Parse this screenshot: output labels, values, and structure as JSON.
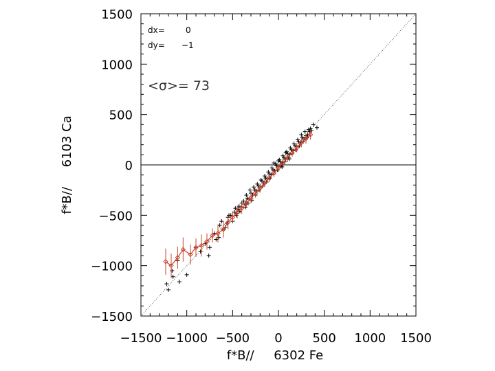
{
  "chart_data": {
    "type": "scatter",
    "title": "",
    "xlabel": "f*B//     6302 Fe",
    "ylabel": "f*B//     6103 Ca",
    "xlim": [
      -1500,
      1500
    ],
    "ylim": [
      -1500,
      1500
    ],
    "x_ticks": [
      "−1500",
      "−1000",
      "−500",
      "0",
      "500",
      "1000",
      "1500"
    ],
    "y_ticks": [
      "−1500",
      "−1000",
      "−500",
      "0",
      "500",
      "1000",
      "1500"
    ],
    "tick_values": [
      -1500,
      -1000,
      -500,
      0,
      500,
      1000,
      1500
    ],
    "grid": false,
    "annotations": {
      "dx_label": "dx=",
      "dx_value": "0",
      "dy_label": "dy=",
      "dy_value": "−1",
      "sigma_text": "<σ>= 73"
    },
    "colors": {
      "points": "#000000",
      "binned_mean": "#c8442c",
      "diagonal": "#555555"
    },
    "reference_lines": [
      {
        "type": "identity",
        "from": [
          -1500,
          -1500
        ],
        "to": [
          1500,
          1500
        ],
        "style": "dotted"
      },
      {
        "type": "horizontal",
        "y": 0,
        "style": "solid"
      }
    ],
    "scatter_points": [
      [
        -1220,
        -1180
      ],
      [
        -1150,
        -1110
      ],
      [
        -1160,
        -1050
      ],
      [
        -1080,
        -1160
      ],
      [
        -1000,
        -1090
      ],
      [
        -900,
        -820
      ],
      [
        -850,
        -860
      ],
      [
        -800,
        -780
      ],
      [
        -760,
        -900
      ],
      [
        -1100,
        -950
      ],
      [
        -700,
        -680
      ],
      [
        -650,
        -720
      ],
      [
        -640,
        -600
      ],
      [
        -600,
        -640
      ],
      [
        -580,
        -620
      ],
      [
        -550,
        -520
      ],
      [
        -520,
        -500
      ],
      [
        -500,
        -560
      ],
      [
        -470,
        -430
      ],
      [
        -450,
        -480
      ],
      [
        -430,
        -410
      ],
      [
        -400,
        -420
      ],
      [
        -380,
        -360
      ],
      [
        -360,
        -390
      ],
      [
        -340,
        -330
      ],
      [
        -320,
        -340
      ],
      [
        -300,
        -280
      ],
      [
        -280,
        -300
      ],
      [
        -260,
        -250
      ],
      [
        -240,
        -260
      ],
      [
        -220,
        -210
      ],
      [
        -200,
        -220
      ],
      [
        -180,
        -160
      ],
      [
        -160,
        -180
      ],
      [
        -140,
        -130
      ],
      [
        -120,
        -140
      ],
      [
        -100,
        -90
      ],
      [
        -80,
        -100
      ],
      [
        -60,
        -50
      ],
      [
        -40,
        -60
      ],
      [
        -20,
        -10
      ],
      [
        0,
        -20
      ],
      [
        20,
        30
      ],
      [
        40,
        20
      ],
      [
        60,
        70
      ],
      [
        80,
        60
      ],
      [
        100,
        110
      ],
      [
        120,
        100
      ],
      [
        140,
        150
      ],
      [
        160,
        140
      ],
      [
        180,
        190
      ],
      [
        200,
        180
      ],
      [
        220,
        230
      ],
      [
        240,
        220
      ],
      [
        260,
        270
      ],
      [
        280,
        260
      ],
      [
        300,
        290
      ],
      [
        320,
        300
      ],
      [
        340,
        330
      ],
      [
        360,
        340
      ],
      [
        -350,
        -300
      ],
      [
        -330,
        -380
      ],
      [
        -310,
        -250
      ],
      [
        -290,
        -350
      ],
      [
        -270,
        -220
      ],
      [
        -250,
        -300
      ],
      [
        -230,
        -190
      ],
      [
        -210,
        -250
      ],
      [
        -190,
        -150
      ],
      [
        -170,
        -210
      ],
      [
        -150,
        -110
      ],
      [
        -130,
        -170
      ],
      [
        -110,
        -70
      ],
      [
        -90,
        -130
      ],
      [
        -70,
        -30
      ],
      [
        -50,
        -90
      ],
      [
        -30,
        10
      ],
      [
        -10,
        -50
      ],
      [
        10,
        50
      ],
      [
        30,
        -10
      ],
      [
        50,
        90
      ],
      [
        70,
        30
      ],
      [
        90,
        130
      ],
      [
        110,
        70
      ],
      [
        130,
        170
      ],
      [
        150,
        110
      ],
      [
        170,
        210
      ],
      [
        190,
        150
      ],
      [
        210,
        250
      ],
      [
        230,
        190
      ],
      [
        250,
        300
      ],
      [
        270,
        230
      ],
      [
        290,
        330
      ],
      [
        310,
        270
      ],
      [
        330,
        350
      ],
      [
        380,
        400
      ],
      [
        420,
        370
      ],
      [
        350,
        360
      ],
      [
        -480,
        -470
      ],
      [
        -460,
        -500
      ],
      [
        -440,
        -440
      ],
      [
        -420,
        -460
      ],
      [
        -400,
        -380
      ],
      [
        -560,
        -580
      ],
      [
        -540,
        -500
      ],
      [
        -1200,
        -1240
      ],
      [
        -750,
        -820
      ],
      [
        -680,
        -740
      ],
      [
        -620,
        -560
      ],
      [
        -360,
        -420
      ],
      [
        -50,
        20
      ],
      [
        0,
        40
      ],
      [
        40,
        -20
      ],
      [
        80,
        120
      ],
      [
        120,
        60
      ]
    ],
    "binned_mean": {
      "x": [
        -1230,
        -1170,
        -1100,
        -1040,
        -960,
        -900,
        -840,
        -780,
        -720,
        -660,
        -600,
        -550,
        -500,
        -450,
        -400,
        -350,
        -300,
        -250,
        -200,
        -150,
        -100,
        -50,
        0,
        50,
        100,
        150,
        200,
        250,
        300,
        350
      ],
      "y": [
        -960,
        -1000,
        -920,
        -840,
        -890,
        -820,
        -800,
        -760,
        -700,
        -680,
        -640,
        -570,
        -520,
        -470,
        -430,
        -380,
        -330,
        -280,
        -230,
        -180,
        -130,
        -80,
        -30,
        20,
        70,
        120,
        170,
        220,
        260,
        300
      ],
      "err": [
        130,
        120,
        110,
        120,
        100,
        90,
        110,
        80,
        70,
        90,
        80,
        70,
        60,
        60,
        55,
        50,
        50,
        45,
        45,
        40,
        40,
        40,
        40,
        40,
        40,
        40,
        45,
        45,
        50,
        50
      ]
    }
  }
}
